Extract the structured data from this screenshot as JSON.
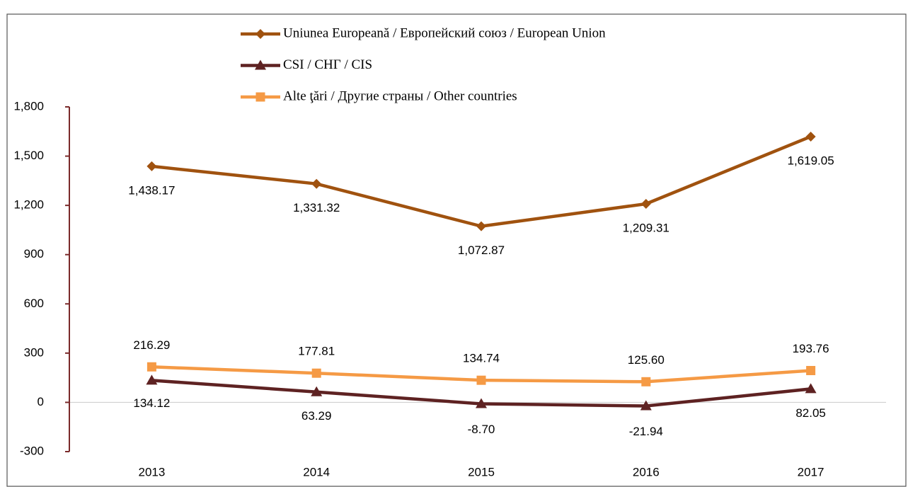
{
  "chart_data": {
    "type": "line",
    "categories": [
      "2013",
      "2014",
      "2015",
      "2016",
      "2017"
    ],
    "series": [
      {
        "name": "Uniunea Europeană / Европейский союз / European Union",
        "color": "#a0520f",
        "marker": "diamond",
        "values": [
          1438.17,
          1331.32,
          1072.87,
          1209.31,
          1619.05
        ],
        "value_labels": [
          "1,438.17",
          "1,331.32",
          "1,072.87",
          "1,209.31",
          "1,619.05"
        ]
      },
      {
        "name": "CSI / СНГ / CIS",
        "color": "#5e2222",
        "marker": "triangle",
        "values": [
          134.12,
          63.29,
          -8.7,
          -21.94,
          82.05
        ],
        "value_labels": [
          "134.12",
          "63.29",
          "-8.70",
          "-21.94",
          "82.05"
        ]
      },
      {
        "name": "Alte ţări / Другие страны / Other countries",
        "color": "#f59a45",
        "marker": "square",
        "values": [
          216.29,
          177.81,
          134.74,
          125.6,
          193.76
        ],
        "value_labels": [
          "216.29",
          "177.81",
          "134.74",
          "125.60",
          "193.76"
        ]
      }
    ],
    "ylim": [
      -300,
      1800
    ],
    "yticks": [
      -300,
      0,
      300,
      600,
      900,
      {
        "value": 1200,
        "label": "1,200"
      },
      {
        "value": 1500,
        "label": "1,500"
      },
      {
        "value": 1800,
        "label": "1,800"
      }
    ],
    "legend": "top"
  }
}
